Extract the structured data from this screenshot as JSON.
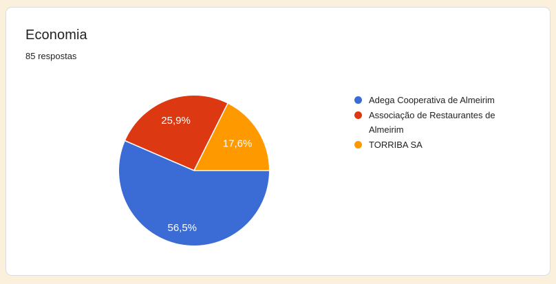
{
  "page": {
    "background_color": "#FAF0DC"
  },
  "card": {
    "title": "Economia",
    "responses_count": "85 respostas",
    "background_color": "#FFFFFF",
    "border_color": "#DADCE0"
  },
  "chart_data": {
    "type": "pie",
    "title": "Economia",
    "total_responses_label": "85 respostas",
    "legend_position": "right",
    "start_angle_deg_clockwise_from_top": 90,
    "slice_label_color": "#FFFFFF",
    "slice_separator_color": "#FFFFFF",
    "legend_text_color": "#212121",
    "slices": [
      {
        "label": "Adega Cooperativa de Almeirim",
        "percent": 56.5,
        "percent_label": "56,5%",
        "color": "#3B6BD5"
      },
      {
        "label": "Associação de Restaurantes de Almeirim",
        "percent": 25.9,
        "percent_label": "25,9%",
        "color": "#DC3912"
      },
      {
        "label": "TORRIBA SA",
        "percent": 17.6,
        "percent_label": "17,6%",
        "color": "#FF9900"
      }
    ]
  }
}
